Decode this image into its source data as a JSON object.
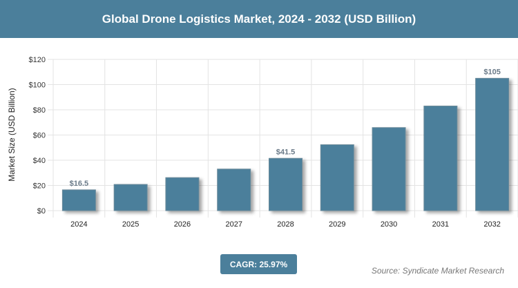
{
  "header": {
    "title": "Global Drone Logistics Market, 2024 - 2032 (USD Billion)"
  },
  "chart_data": {
    "type": "bar",
    "title": "Global Drone Logistics Market, 2024 - 2032 (USD Billion)",
    "xlabel": "",
    "ylabel": "Market Size (USD Billion)",
    "categories": [
      "2024",
      "2025",
      "2026",
      "2027",
      "2028",
      "2029",
      "2030",
      "2031",
      "2032"
    ],
    "values": [
      16.5,
      20.8,
      26.2,
      33.0,
      41.5,
      52.3,
      65.9,
      83.0,
      105
    ],
    "data_labels": {
      "0": "$16.5",
      "4": "$41.5",
      "8": "$105"
    },
    "ylim": [
      0,
      120
    ],
    "yticks": [
      0,
      20,
      40,
      60,
      80,
      100,
      120
    ],
    "ytick_labels": [
      "$0",
      "$20",
      "$40",
      "$60",
      "$80",
      "$100",
      "$120"
    ],
    "grid": true,
    "bar_color": "#4b7f9b"
  },
  "footer": {
    "cagr": "CAGR: 25.97%",
    "source": "Source: Syndicate Market Research"
  }
}
